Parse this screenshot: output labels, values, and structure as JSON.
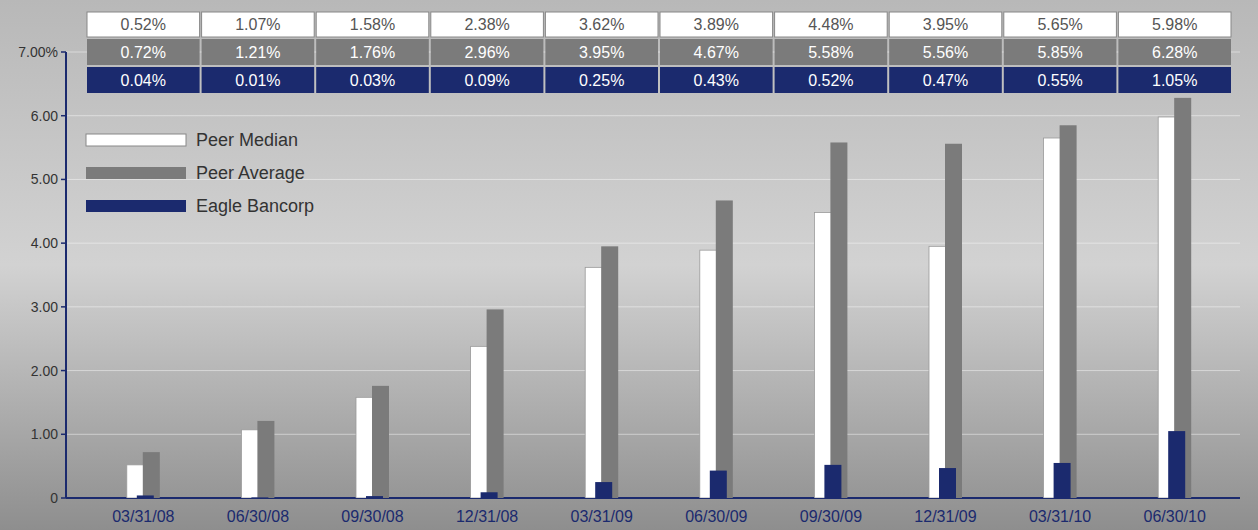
{
  "chart_data": {
    "type": "bar",
    "categories": [
      "03/31/08",
      "06/30/08",
      "09/30/08",
      "12/31/08",
      "03/31/09",
      "06/30/09",
      "09/30/09",
      "12/31/09",
      "03/31/10",
      "06/30/10"
    ],
    "series": [
      {
        "name": "Peer Median",
        "color": "#ffffff",
        "values": [
          0.52,
          1.07,
          1.58,
          2.38,
          3.62,
          3.89,
          4.48,
          3.95,
          5.65,
          5.98
        ],
        "value_labels": [
          "0.52%",
          "1.07%",
          "1.58%",
          "2.38%",
          "3.62%",
          "3.89%",
          "4.48%",
          "3.95%",
          "5.65%",
          "5.98%"
        ]
      },
      {
        "name": "Peer Average",
        "color": "#7b7b7b",
        "values": [
          0.72,
          1.21,
          1.76,
          2.96,
          3.95,
          4.67,
          5.58,
          5.56,
          5.85,
          6.28
        ],
        "value_labels": [
          "0.72%",
          "1.21%",
          "1.76%",
          "2.96%",
          "3.95%",
          "4.67%",
          "5.58%",
          "5.56%",
          "5.85%",
          "6.28%"
        ]
      },
      {
        "name": "Eagle Bancorp",
        "color": "#1b2a6e",
        "values": [
          0.04,
          0.01,
          0.03,
          0.09,
          0.25,
          0.43,
          0.52,
          0.47,
          0.55,
          1.05
        ],
        "value_labels": [
          "0.04%",
          "0.01%",
          "0.03%",
          "0.09%",
          "0.25%",
          "0.43%",
          "0.52%",
          "0.47%",
          "0.55%",
          "1.05%"
        ]
      }
    ],
    "ylim": [
      0,
      7
    ],
    "yticks": [
      0,
      {
        "value": 1,
        "label": "1.00"
      },
      {
        "value": 2,
        "label": "2.00"
      },
      {
        "value": 3,
        "label": "3.00"
      },
      {
        "value": 4,
        "label": "4.00"
      },
      {
        "value": 5,
        "label": "5.00"
      },
      {
        "value": 6,
        "label": "6.00"
      },
      {
        "value": 7,
        "label": "7.00%"
      }
    ],
    "grid": true,
    "legend": "top-left"
  }
}
